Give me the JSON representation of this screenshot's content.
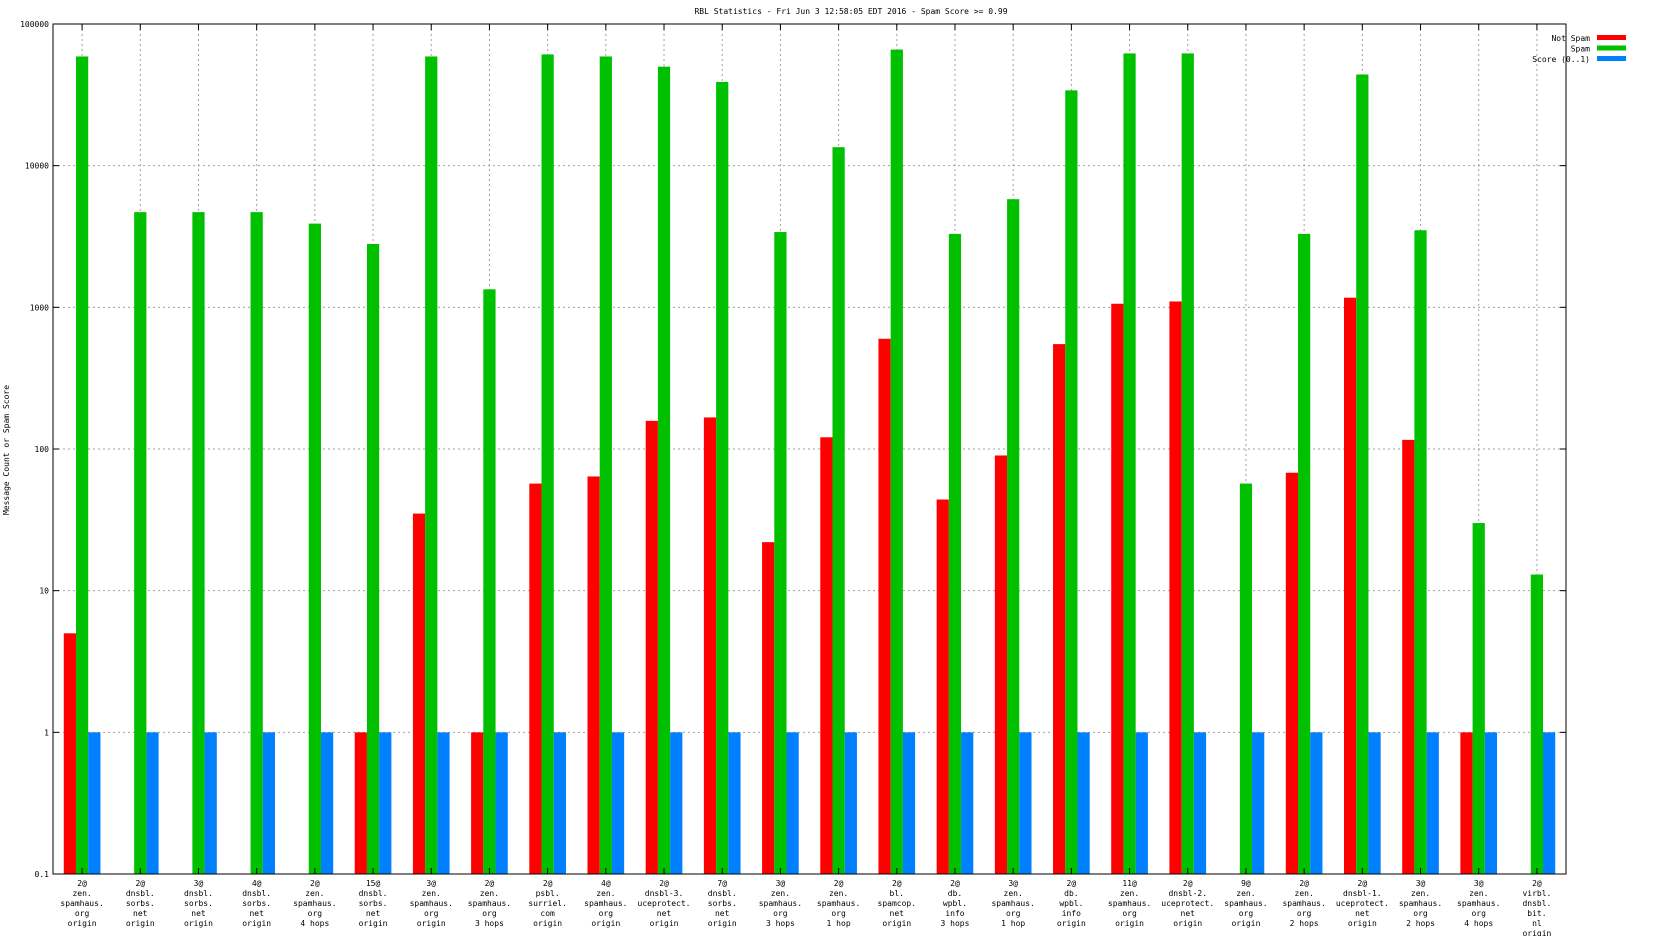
{
  "chart_data": {
    "type": "bar",
    "title": "RBL Statistics - Fri Jun  3 12:58:05 EDT 2016 - Spam Score >= 0.99",
    "ylabel": "Message Count or Spam Score",
    "xlabel": "",
    "yscale": "log",
    "ylim": [
      0.1,
      100000
    ],
    "yticks": [
      "0.1",
      "1",
      "10",
      "100",
      "1000",
      "10000",
      "100000"
    ],
    "grid": true,
    "legend_position": "top-right",
    "categories": [
      [
        "2@",
        "zen.",
        "spamhaus.",
        "org",
        "origin"
      ],
      [
        "2@",
        "dnsbl.",
        "sorbs.",
        "net",
        "origin"
      ],
      [
        "3@",
        "dnsbl.",
        "sorbs.",
        "net",
        "origin"
      ],
      [
        "4@",
        "dnsbl.",
        "sorbs.",
        "net",
        "origin"
      ],
      [
        "2@",
        "zen.",
        "spamhaus.",
        "org",
        "4 hops"
      ],
      [
        "15@",
        "dnsbl.",
        "sorbs.",
        "net",
        "origin"
      ],
      [
        "3@",
        "zen.",
        "spamhaus.",
        "org",
        "origin"
      ],
      [
        "2@",
        "zen.",
        "spamhaus.",
        "org",
        "3 hops"
      ],
      [
        "2@",
        "psbl.",
        "surriel.",
        "com",
        "origin"
      ],
      [
        "4@",
        "zen.",
        "spamhaus.",
        "org",
        "origin"
      ],
      [
        "2@",
        "dnsbl-3.",
        "uceprotect.",
        "net",
        "origin"
      ],
      [
        "7@",
        "dnsbl.",
        "sorbs.",
        "net",
        "origin"
      ],
      [
        "3@",
        "zen.",
        "spamhaus.",
        "org",
        "3 hops"
      ],
      [
        "2@",
        "zen.",
        "spamhaus.",
        "org",
        "1 hop"
      ],
      [
        "2@",
        "bl.",
        "spamcop.",
        "net",
        "origin"
      ],
      [
        "2@",
        "db.",
        "wpbl.",
        "info",
        "3 hops"
      ],
      [
        "3@",
        "zen.",
        "spamhaus.",
        "org",
        "1 hop"
      ],
      [
        "2@",
        "db.",
        "wpbl.",
        "info",
        "origin"
      ],
      [
        "11@",
        "zen.",
        "spamhaus.",
        "org",
        "origin"
      ],
      [
        "2@",
        "dnsbl-2.",
        "uceprotect.",
        "net",
        "origin"
      ],
      [
        "9@",
        "zen.",
        "spamhaus.",
        "org",
        "origin"
      ],
      [
        "2@",
        "zen.",
        "spamhaus.",
        "org",
        "2 hops"
      ],
      [
        "2@",
        "dnsbl-1.",
        "uceprotect.",
        "net",
        "origin"
      ],
      [
        "3@",
        "zen.",
        "spamhaus.",
        "org",
        "2 hops"
      ],
      [
        "3@",
        "zen.",
        "spamhaus.",
        "org",
        "4 hops"
      ],
      [
        "2@",
        "virbl.",
        "dnsbl.",
        "bit.",
        "nl",
        "origin"
      ]
    ],
    "series": [
      {
        "name": "Not Spam",
        "color": "#ff0000",
        "values": [
          5,
          null,
          null,
          null,
          null,
          1,
          35,
          1,
          57,
          64,
          158,
          167,
          22,
          121,
          600,
          44,
          90,
          550,
          1060,
          1100,
          null,
          68,
          1170,
          116,
          1,
          null
        ]
      },
      {
        "name": "Spam",
        "color": "#00c000",
        "values": [
          59000,
          4700,
          4700,
          4700,
          3900,
          2800,
          59000,
          1340,
          61000,
          59000,
          50000,
          39000,
          3400,
          13500,
          66000,
          3300,
          5800,
          34000,
          62000,
          62000,
          57,
          3300,
          44000,
          3500,
          30,
          13
        ]
      },
      {
        "name": "Score (0..1)",
        "color": "#0080ff",
        "values": [
          1,
          1,
          1,
          1,
          1,
          1,
          1,
          1,
          1,
          1,
          1,
          1,
          1,
          1,
          1,
          1,
          1,
          1,
          1,
          1,
          1,
          1,
          1,
          1,
          1,
          1
        ]
      }
    ]
  }
}
